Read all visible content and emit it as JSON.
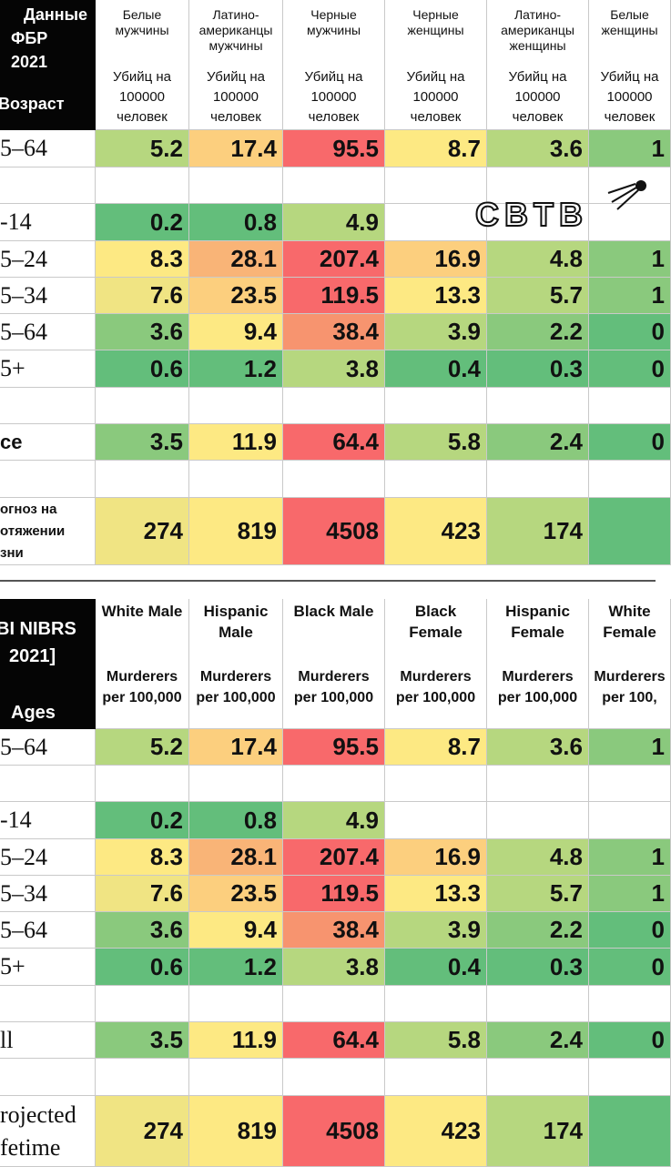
{
  "colors": {
    "dark_green": "#63be7b",
    "green": "#8ac97d",
    "light_green": "#b6d77f",
    "yellow_green": "#d4df81",
    "pale_yellow": "#f0e483",
    "yellow": "#fde983",
    "light_orange": "#fccf7e",
    "orange": "#f9b477",
    "dark_orange": "#f7946f",
    "red": "#f8696b"
  },
  "ru": {
    "corner": [
      "Данные",
      "ФБР",
      "2021",
      "Возраст"
    ],
    "columns": [
      {
        "group": "Белые мужчины",
        "unit": "Убийц на 100000 человек"
      },
      {
        "group": "Латино-американцы мужчины",
        "unit": "Убийц на 100000 человек"
      },
      {
        "group": "Черные мужчины",
        "unit": "Убийц на 100000 человек"
      },
      {
        "group": "Черные женщины",
        "unit": "Убийц на 100000 человек"
      },
      {
        "group": "Латино-американцы женщины",
        "unit": "Убийц на 100000 человек"
      },
      {
        "group": "Белые женщины",
        "unit": "Убийц на 100000 человек"
      }
    ],
    "rows": [
      {
        "label": "5–64",
        "values": [
          "5.2",
          "17.4",
          "95.5",
          "8.7",
          "3.6",
          "1"
        ],
        "colors": [
          "light_green",
          "light_orange",
          "red",
          "yellow",
          "light_green",
          "green"
        ]
      },
      {
        "label": "",
        "values": [
          "",
          "",
          "",
          "",
          "",
          ""
        ],
        "colors": [
          "",
          "",
          "",
          "",
          "",
          ""
        ]
      },
      {
        "label": "-14",
        "values": [
          "0.2",
          "0.8",
          "4.9",
          "",
          "",
          ""
        ],
        "colors": [
          "dark_green",
          "dark_green",
          "light_green",
          "",
          "",
          ""
        ]
      },
      {
        "label": "5–24",
        "values": [
          "8.3",
          "28.1",
          "207.4",
          "16.9",
          "4.8",
          "1"
        ],
        "colors": [
          "yellow",
          "orange",
          "red",
          "light_orange",
          "light_green",
          "green"
        ]
      },
      {
        "label": "5–34",
        "values": [
          "7.6",
          "23.5",
          "119.5",
          "13.3",
          "5.7",
          "1"
        ],
        "colors": [
          "pale_yellow",
          "light_orange",
          "red",
          "yellow",
          "light_green",
          "green"
        ]
      },
      {
        "label": "5–64",
        "values": [
          "3.6",
          "9.4",
          "38.4",
          "3.9",
          "2.2",
          "0"
        ],
        "colors": [
          "green",
          "yellow",
          "dark_orange",
          "light_green",
          "green",
          "dark_green"
        ]
      },
      {
        "label": "5+",
        "values": [
          "0.6",
          "1.2",
          "3.8",
          "0.4",
          "0.3",
          "0"
        ],
        "colors": [
          "dark_green",
          "dark_green",
          "light_green",
          "dark_green",
          "dark_green",
          "dark_green"
        ]
      },
      {
        "label": "",
        "values": [
          "",
          "",
          "",
          "",
          "",
          ""
        ],
        "colors": [
          "",
          "",
          "",
          "",
          "",
          ""
        ]
      },
      {
        "label": "ce",
        "values": [
          "3.5",
          "11.9",
          "64.4",
          "5.8",
          "2.4",
          "0"
        ],
        "colors": [
          "green",
          "yellow",
          "red",
          "light_green",
          "green",
          "dark_green"
        ]
      },
      {
        "label": "",
        "values": [
          "",
          "",
          "",
          "",
          "",
          ""
        ],
        "colors": [
          "",
          "",
          "",
          "",
          "",
          ""
        ]
      },
      {
        "label": "огноз на|отяжении|зни",
        "values": [
          "274",
          "819",
          "4508",
          "423",
          "174",
          ""
        ],
        "colors": [
          "pale_yellow",
          "yellow",
          "red",
          "yellow",
          "light_green",
          "dark_green"
        ]
      }
    ]
  },
  "en": {
    "corner": [
      "BI NIBRS",
      "2021]",
      "Ages"
    ],
    "columns": [
      {
        "group": "White Male",
        "unit": "Murderers per 100,000"
      },
      {
        "group": "Hispanic Male",
        "unit": "Murderers per 100,000"
      },
      {
        "group": "Black Male",
        "unit": "Murderers per 100,000"
      },
      {
        "group": "Black Female",
        "unit": "Murderers per 100,000"
      },
      {
        "group": "Hispanic Female",
        "unit": "Murderers per 100,000"
      },
      {
        "group": "White Female",
        "unit": "Murderers per 100,"
      }
    ],
    "rows": [
      {
        "label": "5–64",
        "values": [
          "5.2",
          "17.4",
          "95.5",
          "8.7",
          "3.6",
          "1"
        ],
        "colors": [
          "light_green",
          "light_orange",
          "red",
          "yellow",
          "light_green",
          "green"
        ]
      },
      {
        "label": "",
        "values": [
          "",
          "",
          "",
          "",
          "",
          ""
        ],
        "colors": [
          "",
          "",
          "",
          "",
          "",
          ""
        ]
      },
      {
        "label": "-14",
        "values": [
          "0.2",
          "0.8",
          "4.9",
          "",
          "",
          ""
        ],
        "colors": [
          "dark_green",
          "dark_green",
          "light_green",
          "",
          "",
          ""
        ]
      },
      {
        "label": "5–24",
        "values": [
          "8.3",
          "28.1",
          "207.4",
          "16.9",
          "4.8",
          "1"
        ],
        "colors": [
          "yellow",
          "orange",
          "red",
          "light_orange",
          "light_green",
          "green"
        ]
      },
      {
        "label": "5–34",
        "values": [
          "7.6",
          "23.5",
          "119.5",
          "13.3",
          "5.7",
          "1"
        ],
        "colors": [
          "pale_yellow",
          "light_orange",
          "red",
          "yellow",
          "light_green",
          "green"
        ]
      },
      {
        "label": "5–64",
        "values": [
          "3.6",
          "9.4",
          "38.4",
          "3.9",
          "2.2",
          "0"
        ],
        "colors": [
          "green",
          "yellow",
          "dark_orange",
          "light_green",
          "green",
          "dark_green"
        ]
      },
      {
        "label": "5+",
        "values": [
          "0.6",
          "1.2",
          "3.8",
          "0.4",
          "0.3",
          "0"
        ],
        "colors": [
          "dark_green",
          "dark_green",
          "light_green",
          "dark_green",
          "dark_green",
          "dark_green"
        ]
      },
      {
        "label": "",
        "values": [
          "",
          "",
          "",
          "",
          "",
          ""
        ],
        "colors": [
          "",
          "",
          "",
          "",
          "",
          ""
        ]
      },
      {
        "label": "ll",
        "values": [
          "3.5",
          "11.9",
          "64.4",
          "5.8",
          "2.4",
          "0"
        ],
        "colors": [
          "green",
          "yellow",
          "red",
          "light_green",
          "green",
          "dark_green"
        ]
      },
      {
        "label": "",
        "values": [
          "",
          "",
          "",
          "",
          "",
          ""
        ],
        "colors": [
          "",
          "",
          "",
          "",
          "",
          ""
        ]
      },
      {
        "label": "rojected|fetime",
        "values": [
          "274",
          "819",
          "4508",
          "423",
          "174",
          ""
        ],
        "colors": [
          "pale_yellow",
          "yellow",
          "red",
          "yellow",
          "light_green",
          "dark_green"
        ]
      }
    ]
  },
  "watermark": {
    "text": "CBTB",
    "icon": "comet-icon"
  }
}
